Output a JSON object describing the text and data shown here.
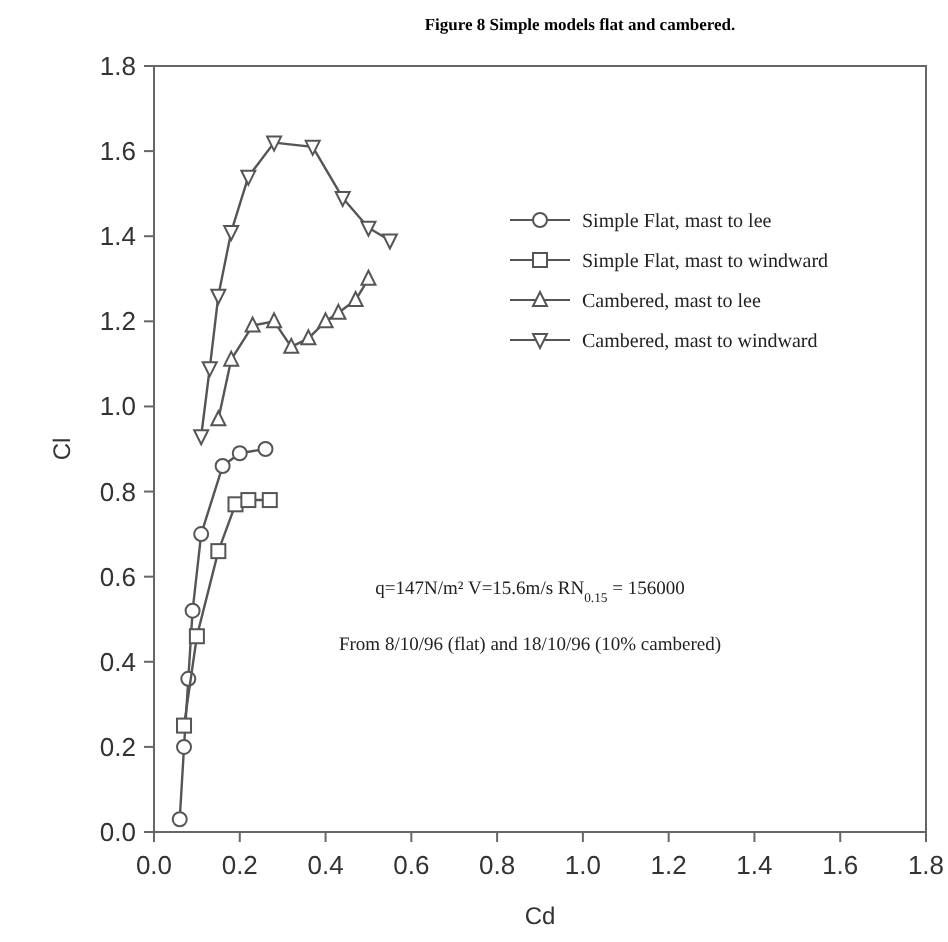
{
  "chart_data": {
    "type": "line",
    "title": "Figure 8 Simple models flat and cambered.",
    "xlabel": "Cd",
    "ylabel": "Cl",
    "xlim": [
      0,
      1.8
    ],
    "ylim": [
      0,
      1.8
    ],
    "xticks": [
      {
        "value": 0,
        "label": "0.0"
      },
      0.2,
      0.4,
      0.6,
      0.8,
      {
        "value": 1,
        "label": "1.0"
      },
      1.2,
      1.4,
      1.6,
      1.8
    ],
    "yticks": [
      {
        "value": 0,
        "label": "0.0"
      },
      0.2,
      0.4,
      0.6,
      0.8,
      {
        "value": 1,
        "label": "1.0"
      },
      1.2,
      1.4,
      1.6,
      1.8
    ],
    "grid": false,
    "legend": "top right",
    "line_style": "solid",
    "annotations": [
      "q=147N/m² V=15.6m/s RN$_{0.15}$ = 156000",
      "From 8/10/96 (flat) and 18/10/96 (10% cambered)"
    ],
    "series": [
      {
        "name": "Simple Flat, mast to lee",
        "color": "#555555",
        "marker": "circle",
        "x": [
          0.06,
          0.07,
          0.08,
          0.09,
          0.11,
          0.16,
          0.2,
          0.26
        ],
        "values": [
          0.03,
          0.2,
          0.36,
          0.52,
          0.7,
          0.86,
          0.89,
          0.9
        ]
      },
      {
        "name": "Simple Flat, mast to windward",
        "color": "#555555",
        "marker": "square",
        "x": [
          0.07,
          0.1,
          0.15,
          0.19,
          0.22,
          0.27
        ],
        "values": [
          0.25,
          0.46,
          0.66,
          0.77,
          0.78,
          0.78
        ]
      },
      {
        "name": "Cambered, mast to lee",
        "color": "#555555",
        "marker": "triangle",
        "x": [
          0.15,
          0.18,
          0.23,
          0.28,
          0.32,
          0.36,
          0.4,
          0.43,
          0.47,
          0.5
        ],
        "values": [
          0.97,
          1.11,
          1.19,
          1.2,
          1.14,
          1.16,
          1.2,
          1.22,
          1.25,
          1.3
        ]
      },
      {
        "name": "Cambered, mast to windward",
        "color": "#555555",
        "marker": "triangle-down",
        "x": [
          0.11,
          0.13,
          0.15,
          0.18,
          0.22,
          0.28,
          0.37,
          0.44,
          0.5,
          0.55
        ],
        "values": [
          0.93,
          1.09,
          1.26,
          1.41,
          1.54,
          1.62,
          1.61,
          1.49,
          1.42,
          1.39
        ]
      }
    ]
  }
}
